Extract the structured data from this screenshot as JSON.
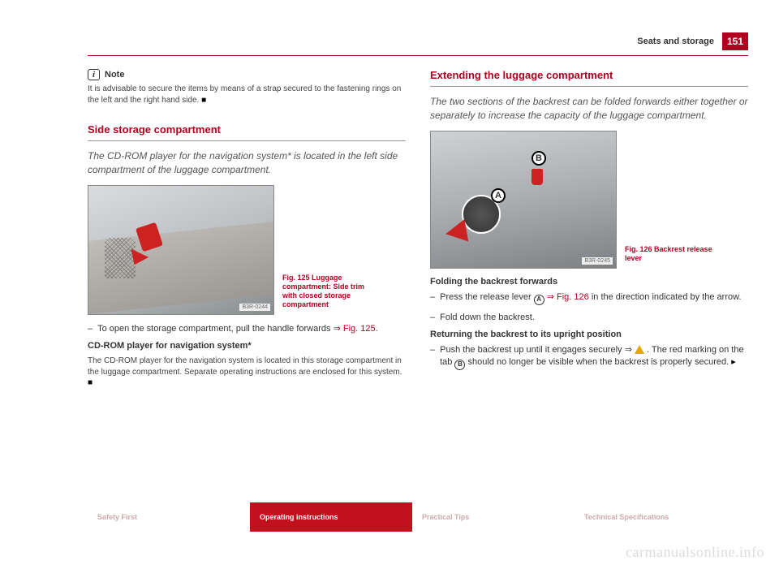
{
  "header": {
    "section": "Seats and storage",
    "page": "151"
  },
  "col1": {
    "note_label": "Note",
    "note_text": "It is advisable to secure the items by means of a strap secured to the fastening rings on the left and the right hand side.",
    "section_title": "Side storage compartment",
    "intro": "The CD-ROM player for the navigation system* is located in the left side compartment of the luggage compartment.",
    "fig_caption": "Fig. 125  Luggage compartment: Side trim with closed storage compartment",
    "fig_id": "B3R-0244",
    "step1": "To open the storage compartment, pull the handle forwards",
    "step1_ref": "⇒ Fig. 125",
    "sub_title": "CD-ROM player for navigation system*",
    "sub_text": "The CD-ROM player for the navigation system is located in this storage compartment in the luggage compartment. Separate operating instructions are enclosed for this system."
  },
  "col2": {
    "section_title": "Extending the luggage compartment",
    "intro": "The two sections of the backrest can be folded forwards either together or separately to increase the capacity of the luggage compartment.",
    "fig_caption": "Fig. 126  Backrest release lever",
    "fig_id": "B3R-0245",
    "group1_title": "Folding the backrest forwards",
    "g1_step1a": "Press the release lever ",
    "g1_step1_ref": " ⇒ Fig. 126",
    "g1_step1b": " in the direction indicated by the arrow.",
    "g1_step2": "Fold down the backrest.",
    "group2_title": "Returning the backrest to its upright position",
    "g2_step1a": "Push the backrest up until it engages securely ⇒ ",
    "g2_step1b": ". The red marking on the tab ",
    "g2_step1c": " should no longer be visible when the backrest is properly secured."
  },
  "footer": {
    "t1": "Safety First",
    "t2": "Operating instructions",
    "t3": "Practical Tips",
    "t4": "Technical Specifications"
  },
  "watermark": "carmanualsonline.info"
}
